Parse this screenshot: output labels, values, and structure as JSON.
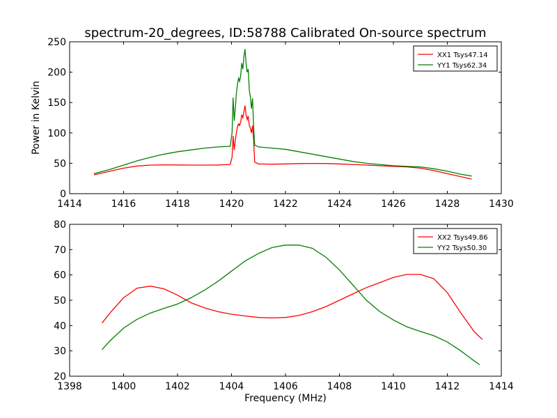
{
  "figure": {
    "title": "spectrum-20_degrees, ID:58788 Calibrated On-source spectrum"
  },
  "chart_data": [
    {
      "type": "line",
      "title": "spectrum-20_degrees, ID:58788 Calibrated On-source spectrum",
      "xlabel": "",
      "ylabel": "Power in Kelvin",
      "xlim": [
        1414,
        1430
      ],
      "ylim": [
        0,
        250
      ],
      "xticks": [
        1414,
        1416,
        1418,
        1420,
        1422,
        1424,
        1426,
        1428,
        1430
      ],
      "yticks": [
        0,
        50,
        100,
        150,
        200,
        250
      ],
      "legend": "top-right",
      "grid": false,
      "series": [
        {
          "name": "XX1 Tsys47.14",
          "color": "#ff0000",
          "x": [
            1414.9,
            1415.5,
            1416,
            1416.5,
            1417,
            1417.5,
            1418,
            1418.5,
            1419,
            1419.5,
            1419.95,
            1420.02,
            1420.06,
            1420.1,
            1420.14,
            1420.18,
            1420.22,
            1420.26,
            1420.3,
            1420.34,
            1420.38,
            1420.42,
            1420.46,
            1420.5,
            1420.54,
            1420.58,
            1420.62,
            1420.66,
            1420.7,
            1420.74,
            1420.78,
            1420.82,
            1420.86,
            1421,
            1421.5,
            1422,
            1422.5,
            1423,
            1423.5,
            1424,
            1424.5,
            1425,
            1425.5,
            1426,
            1426.5,
            1427,
            1427.5,
            1428,
            1428.5,
            1428.9
          ],
          "values": [
            31,
            37,
            42,
            45.5,
            47,
            47.5,
            47.3,
            47,
            47,
            47.3,
            48,
            60,
            95,
            72,
            88,
            100,
            110,
            115,
            112,
            118,
            130,
            125,
            135,
            145,
            130,
            122,
            128,
            112,
            108,
            100,
            112,
            88,
            52,
            49,
            48.5,
            49,
            49.5,
            49.8,
            49.6,
            49,
            48,
            47,
            46,
            45,
            44,
            42,
            38,
            33,
            28,
            24
          ]
        },
        {
          "name": "YY1 Tsys62.34",
          "color": "#008000",
          "x": [
            1414.9,
            1415.5,
            1416,
            1416.5,
            1417,
            1417.5,
            1418,
            1418.5,
            1419,
            1419.5,
            1419.95,
            1420.02,
            1420.06,
            1420.1,
            1420.14,
            1420.18,
            1420.22,
            1420.26,
            1420.3,
            1420.34,
            1420.38,
            1420.42,
            1420.46,
            1420.5,
            1420.54,
            1420.58,
            1420.62,
            1420.66,
            1420.7,
            1420.74,
            1420.78,
            1420.82,
            1420.86,
            1421,
            1421.5,
            1422,
            1422.5,
            1423,
            1423.5,
            1424,
            1424.5,
            1425,
            1425.5,
            1426,
            1426.5,
            1427,
            1427.5,
            1428,
            1428.5,
            1428.9
          ],
          "values": [
            33,
            40,
            47,
            54,
            60,
            65,
            69,
            72,
            75,
            77,
            78,
            100,
            158,
            120,
            140,
            165,
            180,
            190,
            185,
            195,
            215,
            205,
            225,
            238,
            215,
            200,
            205,
            170,
            160,
            140,
            157,
            110,
            80,
            77,
            75,
            73,
            69,
            65,
            61,
            57,
            53,
            50,
            48,
            46,
            45,
            44,
            41,
            37,
            32,
            29
          ]
        }
      ]
    },
    {
      "type": "line",
      "title": "",
      "xlabel": "Frequency (MHz)",
      "ylabel": "",
      "xlim": [
        1398,
        1414
      ],
      "ylim": [
        20,
        80
      ],
      "xticks": [
        1398,
        1400,
        1402,
        1404,
        1406,
        1408,
        1410,
        1412,
        1414
      ],
      "yticks": [
        20,
        30,
        40,
        50,
        60,
        70,
        80
      ],
      "legend": "top-right",
      "grid": false,
      "series": [
        {
          "name": "XX2 Tsys49.86",
          "color": "#ff0000",
          "x": [
            1399.2,
            1399.5,
            1400,
            1400.5,
            1401,
            1401.5,
            1402,
            1402.5,
            1403,
            1403.5,
            1404,
            1404.5,
            1405,
            1405.5,
            1406,
            1406.5,
            1407,
            1407.5,
            1408,
            1408.5,
            1409,
            1409.5,
            1410,
            1410.5,
            1411,
            1411.5,
            1412,
            1412.5,
            1413,
            1413.3
          ],
          "values": [
            41,
            45,
            51,
            54.8,
            55.6,
            54.5,
            52,
            49,
            47,
            45.5,
            44.5,
            43.8,
            43.2,
            43,
            43.2,
            44,
            45.5,
            47.5,
            50,
            52.5,
            55,
            57,
            59,
            60.2,
            60.2,
            58.5,
            53,
            45,
            37.5,
            34.5
          ]
        },
        {
          "name": "YY2 Tsys50.30",
          "color": "#008000",
          "x": [
            1399.2,
            1399.5,
            1400,
            1400.5,
            1401,
            1401.5,
            1402,
            1402.5,
            1403,
            1403.5,
            1404,
            1404.5,
            1405,
            1405.5,
            1406,
            1406.5,
            1407,
            1407.5,
            1408,
            1408.5,
            1409,
            1409.5,
            1410,
            1410.5,
            1411,
            1411.5,
            1412,
            1412.5,
            1413,
            1413.2
          ],
          "values": [
            30.5,
            34,
            39,
            42.5,
            45,
            46.8,
            48.5,
            51,
            54,
            57.5,
            61.5,
            65.5,
            68.5,
            70.8,
            71.8,
            71.8,
            70.5,
            67,
            62,
            56,
            50,
            45.5,
            42.2,
            39.5,
            37.7,
            36,
            33.5,
            30,
            26,
            24.5
          ]
        }
      ]
    }
  ]
}
